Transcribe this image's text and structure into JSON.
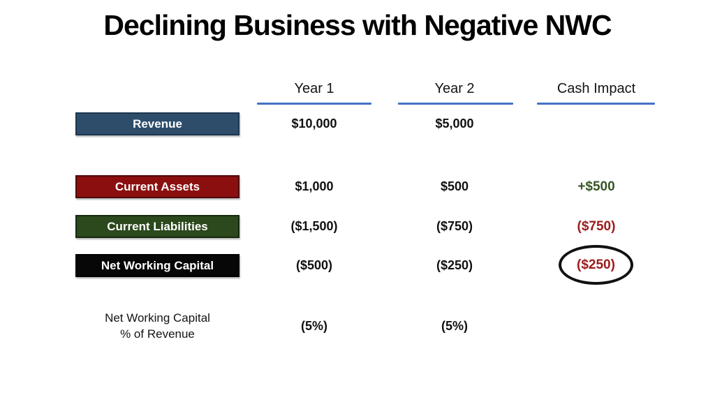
{
  "slide": {
    "title": "Declining Business with Negative NWC"
  },
  "columns": [
    {
      "label": "Year 1"
    },
    {
      "label": "Year 2"
    },
    {
      "label": "Cash Impact"
    }
  ],
  "rows": [
    {
      "label": "Revenue",
      "year1": "$10,000",
      "year2": "$5,000",
      "cash_impact": ""
    },
    {
      "label": "Current Assets",
      "year1": "$1,000",
      "year2": "$500",
      "cash_impact": "+$500"
    },
    {
      "label": "Current Liabilities",
      "year1": "($1,500)",
      "year2": "($750)",
      "cash_impact": "($750)"
    },
    {
      "label": "Net Working Capital",
      "year1": "($500)",
      "year2": "($250)",
      "cash_impact": "($250)"
    },
    {
      "label": "Net Working Capital\n% of Revenue",
      "year1": "(5%)",
      "year2": "(5%)",
      "cash_impact": ""
    }
  ],
  "colors": {
    "revenue_box": "#2E4D6B",
    "current_assets_box": "#8B0F0F",
    "current_liabilities_box": "#2C481D",
    "net_working_capital_box": "#000000",
    "header_underline": "#4472C4",
    "positive_value_text": "#375623",
    "negative_value_text": "#9C1B1B",
    "circle_stroke": "#111111"
  },
  "chart_data": {
    "type": "table",
    "title": "Declining Business with Negative NWC",
    "columns": [
      "",
      "Year 1",
      "Year 2",
      "Cash Impact"
    ],
    "rows": [
      [
        "Revenue",
        "$10,000",
        "$5,000",
        ""
      ],
      [
        "Current Assets",
        "$1,000",
        "$500",
        "+$500"
      ],
      [
        "Current Liabilities",
        "($1,500)",
        "($750)",
        "($750)"
      ],
      [
        "Net Working Capital",
        "($500)",
        "($250)",
        "($250)"
      ],
      [
        "Net Working Capital % of Revenue",
        "(5%)",
        "(5%)",
        ""
      ]
    ],
    "annotations": [
      "($250) cash impact value is circled with a black ellipse"
    ]
  }
}
